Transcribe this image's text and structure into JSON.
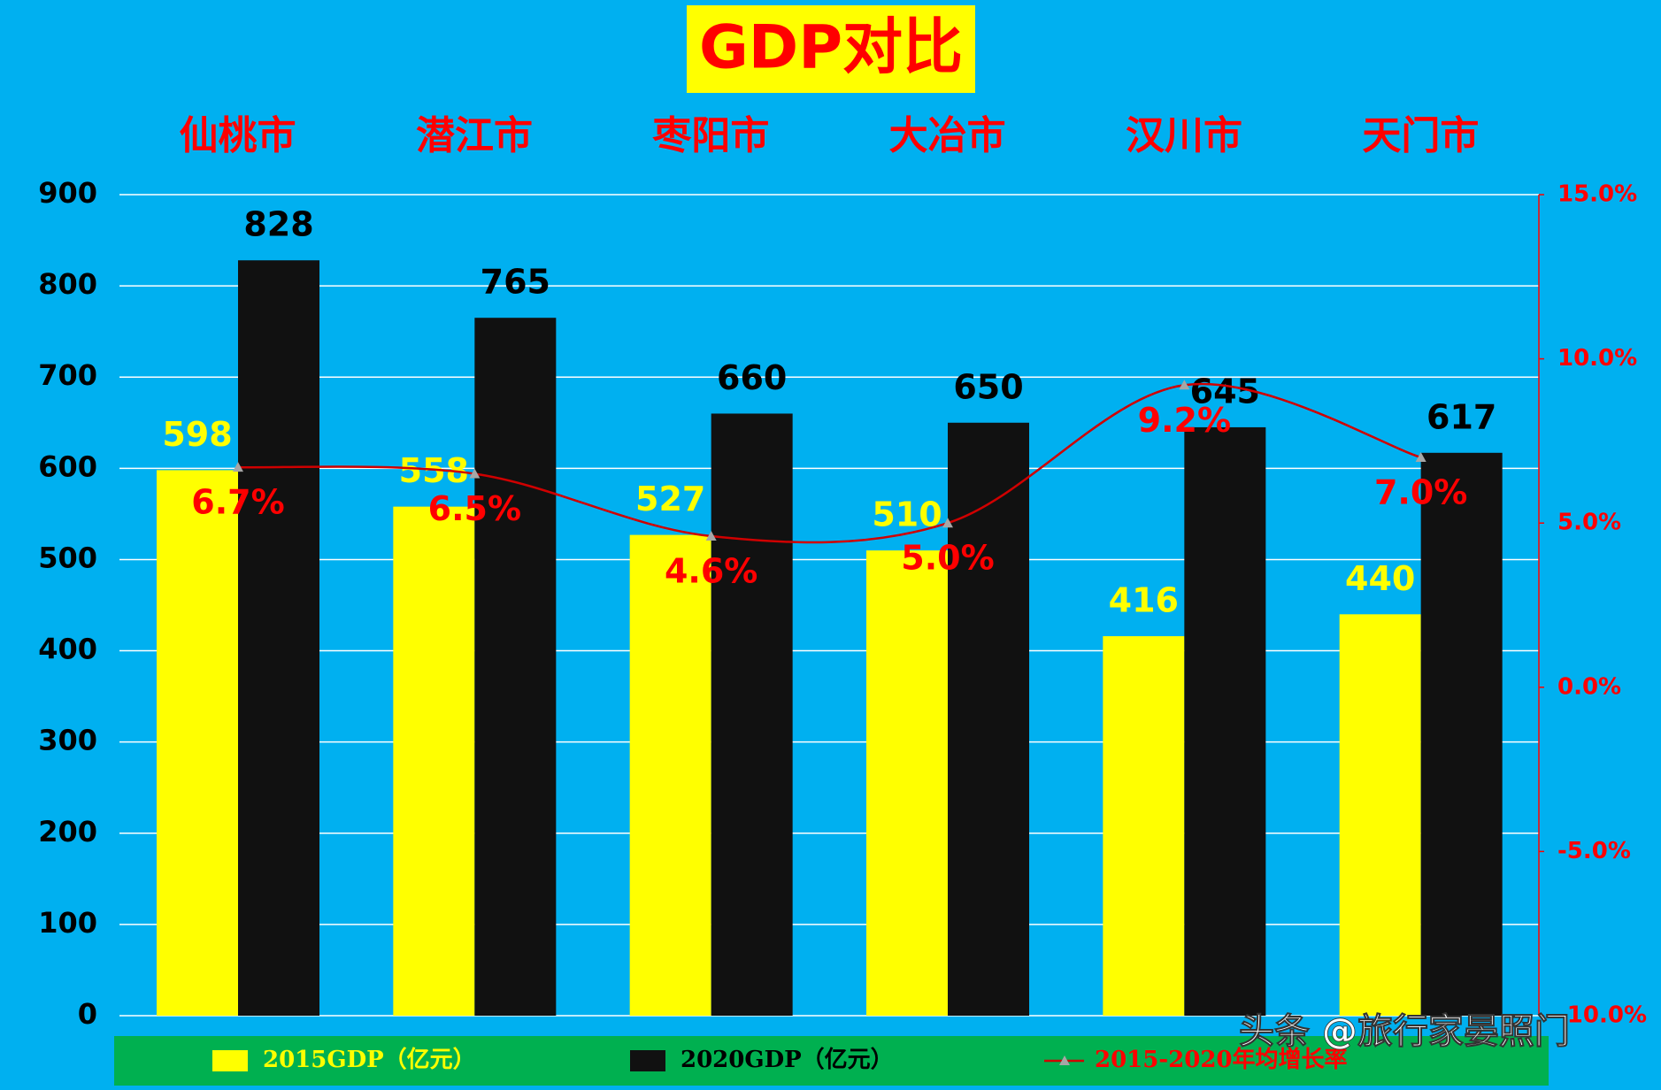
{
  "chart_data": {
    "type": "bar",
    "title": "GDP对比",
    "categories": [
      "仙桃市",
      "潜江市",
      "枣阳市",
      "大冶市",
      "汉川市",
      "天门市"
    ],
    "series": [
      {
        "name": "2015GDP（亿元）",
        "color": "#ffff00",
        "label_color": "#ffff00",
        "values": [
          598,
          558,
          527,
          510,
          416,
          440
        ]
      },
      {
        "name": "2020GDP（亿元）",
        "color": "#111111",
        "label_color": "#000000",
        "values": [
          828,
          765,
          660,
          650,
          645,
          617
        ]
      },
      {
        "name": "2015-2020年均增长率",
        "type": "line",
        "axis": "y2",
        "color": "#d00000",
        "label_color": "#ff0000",
        "values": [
          6.7,
          6.5,
          4.6,
          5.0,
          9.2,
          7.0
        ],
        "value_labels": [
          "6.7%",
          "6.5%",
          "4.6%",
          "5.0%",
          "9.2%",
          "7.0%"
        ]
      }
    ],
    "ylim": [
      0,
      900
    ],
    "yticks": [
      0,
      100,
      200,
      300,
      400,
      500,
      600,
      700,
      800,
      900
    ],
    "y2lim": [
      -10,
      15
    ],
    "y2ticks": [
      {
        "value": -10,
        "label": "-10.0%"
      },
      {
        "value": -5,
        "label": "-5.0%"
      },
      {
        "value": 0,
        "label": "0.0%"
      },
      {
        "value": 5,
        "label": "5.0%"
      },
      {
        "value": 10,
        "label": "10.0%"
      },
      {
        "value": 15,
        "label": "15.0%"
      }
    ],
    "grid": true,
    "legend": "bottom",
    "watermark": "头条 @旅行家晏照门"
  }
}
